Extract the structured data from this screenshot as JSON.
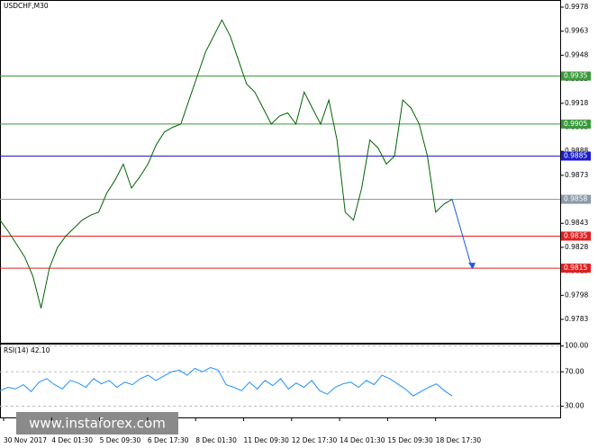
{
  "chart_data": [
    {
      "type": "line",
      "title": "USDCHF,M30",
      "x_labels": [
        "30 Nov 2017",
        "4 Dec 01:30",
        "5 Dec 09:30",
        "6 Dec 17:30",
        "8 Dec 01:30",
        "11 Dec 09:30",
        "12 Dec 17:30",
        "14 Dec 01:30",
        "15 Dec 09:30",
        "18 Dec 17:30"
      ],
      "series": [
        {
          "name": "USDCHF",
          "color": "#006400",
          "values": [
            0.9845,
            0.9838,
            0.983,
            0.9822,
            0.981,
            0.979,
            0.9815,
            0.9828,
            0.9835,
            0.984,
            0.9845,
            0.9848,
            0.985,
            0.9862,
            0.987,
            0.988,
            0.9865,
            0.9872,
            0.988,
            0.9892,
            0.99,
            0.9903,
            0.9905,
            0.992,
            0.9935,
            0.995,
            0.996,
            0.997,
            0.996,
            0.9945,
            0.993,
            0.9925,
            0.9915,
            0.9905,
            0.991,
            0.9912,
            0.9905,
            0.9925,
            0.9915,
            0.9905,
            0.992,
            0.9895,
            0.985,
            0.9845,
            0.9865,
            0.9895,
            0.989,
            0.988,
            0.9885,
            0.992,
            0.9915,
            0.9905,
            0.9885,
            0.985,
            0.9855,
            0.9858
          ]
        }
      ],
      "ylim": [
        0.97684,
        0.99825
      ],
      "yticks": [
        0.9978,
        0.9963,
        0.9948,
        0.9933,
        0.9918,
        0.9903,
        0.9888,
        0.9873,
        0.9858,
        0.9843,
        0.9828,
        0.9813,
        0.9798,
        0.9783
      ],
      "levels": [
        {
          "value": 0.9935,
          "color": "#3a9a3a"
        },
        {
          "value": 0.9905,
          "color": "#3a9a3a"
        },
        {
          "value": 0.9885,
          "color": "#1c1ccc"
        },
        {
          "value": 0.9858,
          "color": "#8a9aa8"
        },
        {
          "value": 0.9835,
          "color": "#e02020"
        },
        {
          "value": 0.9815,
          "color": "#e02020"
        }
      ],
      "arrow_color": "#1c5ce0",
      "watermark": "www.instaforex.com"
    },
    {
      "type": "line",
      "title": "RSI(14) 42.10",
      "series": [
        {
          "name": "RSI(14)",
          "color": "#1e90ff",
          "values": [
            48,
            52,
            50,
            55,
            47,
            58,
            62,
            55,
            50,
            60,
            57,
            52,
            62,
            56,
            60,
            52,
            58,
            55,
            62,
            66,
            60,
            65,
            70,
            72,
            66,
            74,
            70,
            75,
            72,
            55,
            52,
            48,
            58,
            50,
            60,
            54,
            62,
            50,
            57,
            52,
            60,
            48,
            44,
            52,
            56,
            58,
            52,
            60,
            55,
            66,
            62,
            56,
            50,
            42,
            47,
            52,
            56,
            48,
            42
          ]
        }
      ],
      "ylim": [
        17,
        102.7
      ],
      "yticks": [
        {
          "value": 100,
          "label": "100.00"
        },
        {
          "value": 70,
          "label": "70.00"
        },
        {
          "value": 30,
          "label": "30.00"
        }
      ]
    }
  ]
}
